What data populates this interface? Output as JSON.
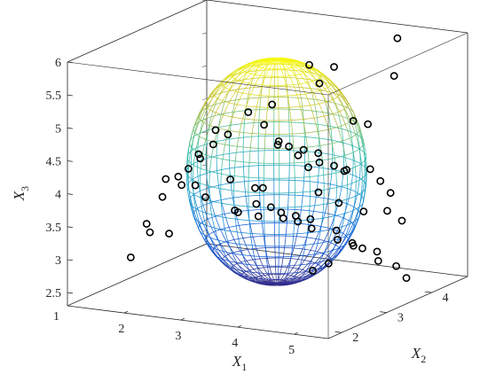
{
  "chart_data": {
    "type": "scatter3d",
    "title": "",
    "axes": {
      "x1": {
        "label": "X",
        "subscript": "1",
        "ticks": [
          2,
          3,
          4,
          5
        ],
        "range": [
          1,
          5.6
        ]
      },
      "x2": {
        "label": "X",
        "subscript": "2",
        "ticks": [
          2,
          3,
          4
        ],
        "range": [
          1.7,
          4.8
        ]
      },
      "x3": {
        "label": "X",
        "subscript": "3",
        "ticks": [
          "2.5",
          "3",
          "3.5",
          "4",
          "4.5",
          "5",
          "5.5",
          "6"
        ],
        "range": [
          2.3,
          6
        ]
      }
    },
    "box": true,
    "grid": false,
    "surface": {
      "type": "ellipsoid wireframe",
      "colormap": "parula",
      "center": [
        3.5,
        3.2,
        4.15
      ],
      "semi_axes": [
        1.4,
        0.95,
        1.7
      ]
    },
    "series": [
      {
        "marker": "circle",
        "color": "#000000",
        "points": [
          [
            2.6,
            2.6,
            4.5
          ],
          [
            2.7,
            2.8,
            4.6
          ],
          [
            2.5,
            2.5,
            4.3
          ],
          [
            2.4,
            2.4,
            4.2
          ],
          [
            2.55,
            2.7,
            4.4
          ],
          [
            2.8,
            3.0,
            4.7
          ],
          [
            2.9,
            2.6,
            4.9
          ],
          [
            3.0,
            3.2,
            5.0
          ],
          [
            3.2,
            3.3,
            4.8
          ],
          [
            3.3,
            3.5,
            4.5
          ],
          [
            3.4,
            3.6,
            4.4
          ],
          [
            3.5,
            3.8,
            4.3
          ],
          [
            3.6,
            4.0,
            4.2
          ],
          [
            3.7,
            3.9,
            4.1
          ],
          [
            3.8,
            4.1,
            4.0
          ],
          [
            3.9,
            4.2,
            3.9
          ],
          [
            3.1,
            3.4,
            3.8
          ],
          [
            3.2,
            3.1,
            3.9
          ],
          [
            3.3,
            3.0,
            3.7
          ],
          [
            3.4,
            3.2,
            3.6
          ],
          [
            3.5,
            3.3,
            3.5
          ],
          [
            3.6,
            3.5,
            3.4
          ],
          [
            3.7,
            3.7,
            3.3
          ],
          [
            3.8,
            3.6,
            3.2
          ],
          [
            4.0,
            3.9,
            3.1
          ],
          [
            4.1,
            3.8,
            3.0
          ],
          [
            4.2,
            4.0,
            2.9
          ],
          [
            4.3,
            4.1,
            2.8
          ],
          [
            4.4,
            4.3,
            2.7
          ],
          [
            4.5,
            4.2,
            2.6
          ],
          [
            3.0,
            2.9,
            3.6
          ],
          [
            2.9,
            3.1,
            3.5
          ],
          [
            3.1,
            3.3,
            3.4
          ],
          [
            3.3,
            3.6,
            3.3
          ],
          [
            3.4,
            3.8,
            3.2
          ],
          [
            2.2,
            2.3,
            3.9
          ],
          [
            2.3,
            2.6,
            4.0
          ],
          [
            2.1,
            2.5,
            4.1
          ],
          [
            2.0,
            2.2,
            3.5
          ],
          [
            1.9,
            2.4,
            3.3
          ],
          [
            2.0,
            2.7,
            3.2
          ],
          [
            1.8,
            2.1,
            3.0
          ],
          [
            3.7,
            3.9,
            5.3
          ],
          [
            3.8,
            4.1,
            5.5
          ],
          [
            3.6,
            3.8,
            5.6
          ],
          [
            4.6,
            4.5,
            5.9
          ],
          [
            4.7,
            4.3,
            5.4
          ],
          [
            3.5,
            3.1,
            5.2
          ],
          [
            3.9,
            4.4,
            4.6
          ],
          [
            4.0,
            4.6,
            4.5
          ],
          [
            4.1,
            4.0,
            4.0
          ],
          [
            4.2,
            4.4,
            3.9
          ],
          [
            4.3,
            4.5,
            3.7
          ],
          [
            4.4,
            4.6,
            3.5
          ],
          [
            4.5,
            4.4,
            3.3
          ],
          [
            4.6,
            4.6,
            3.1
          ],
          [
            4.4,
            4.0,
            3.4
          ],
          [
            4.2,
            3.7,
            3.6
          ],
          [
            4.0,
            3.5,
            3.8
          ],
          [
            3.9,
            3.4,
            4.2
          ],
          [
            3.8,
            3.3,
            4.4
          ],
          [
            3.6,
            3.1,
            4.6
          ],
          [
            2.7,
            2.4,
            4.1
          ],
          [
            2.8,
            2.5,
            3.9
          ],
          [
            3.0,
            2.8,
            4.1
          ],
          [
            4.3,
            3.9,
            2.9
          ],
          [
            4.1,
            3.6,
            2.7
          ],
          [
            3.9,
            3.5,
            2.6
          ],
          [
            4.5,
            4.6,
            2.4
          ],
          [
            4.6,
            4.7,
            2.2
          ]
        ]
      }
    ]
  }
}
